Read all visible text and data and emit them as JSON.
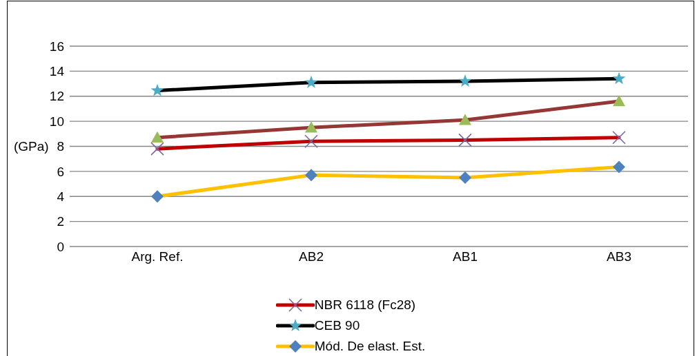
{
  "chart_data": {
    "type": "line",
    "ylabel": "(GPa)",
    "categories": [
      "Arg. Ref.",
      "AB2",
      "AB1",
      "AB3"
    ],
    "series": [
      {
        "name": "NBR 6118 (Fc28)",
        "color": "#c00000",
        "marker": "cross",
        "colors": [
          "#8064a2",
          "#8064a2",
          "#8064a2",
          "#8064a2"
        ],
        "values": [
          7.8,
          8.4,
          8.5,
          8.7
        ]
      },
      {
        "name": "CEB 90",
        "color": "#000000",
        "marker": "star",
        "colors": [
          "#4bacc6",
          "#4bacc6",
          "#4bacc6",
          "#4bacc6"
        ],
        "values": [
          12.45,
          13.1,
          13.2,
          13.4
        ]
      },
      {
        "name": "Mód. De elast. Est.",
        "color": "#ffc000",
        "marker": "diamond",
        "colors": [
          "#4f81bd",
          "#4f81bd",
          "#4f81bd",
          "#4f81bd"
        ],
        "values": [
          4.0,
          5.7,
          5.5,
          6.35
        ]
      },
      {
        "color": "#953735",
        "marker": "triangle",
        "colors": [
          "#9bbb59",
          "#9bbb59",
          "#9bbb59",
          "#9bbb59"
        ],
        "values": [
          8.7,
          9.5,
          10.1,
          11.6
        ]
      }
    ],
    "ylim": [
      0,
      16
    ],
    "yticks": [
      0,
      2,
      4,
      6,
      8,
      10,
      12,
      14,
      16
    ],
    "grid": "y",
    "legend": "bottom",
    "line_style": "solid"
  }
}
